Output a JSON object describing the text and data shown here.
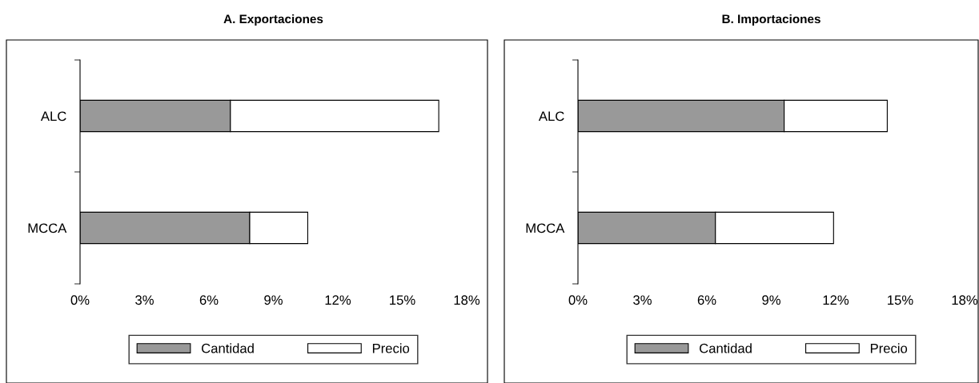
{
  "chart_data": [
    {
      "type": "bar",
      "title": "A. Exportaciones",
      "orientation": "horizontal",
      "stacked": true,
      "categories": [
        "ALC",
        "MCCA"
      ],
      "series": [
        {
          "name": "Cantidad",
          "color": "#999999",
          "values": [
            7.0,
            7.9
          ]
        },
        {
          "name": "Precio",
          "color": "#ffffff",
          "values": [
            9.7,
            2.7
          ]
        }
      ],
      "xlim": [
        0,
        18
      ],
      "xticks": [
        {
          "value": 0,
          "label": "0%"
        },
        {
          "value": 3,
          "label": "3%"
        },
        {
          "value": 6,
          "label": "6%"
        },
        {
          "value": 9,
          "label": "9%"
        },
        {
          "value": 12,
          "label": "12%"
        },
        {
          "value": 15,
          "label": "15%"
        },
        {
          "value": 18,
          "label": "18%"
        }
      ],
      "legend": "bottom",
      "grid": false
    },
    {
      "type": "bar",
      "title": "B. Importaciones",
      "orientation": "horizontal",
      "stacked": true,
      "categories": [
        "ALC",
        "MCCA"
      ],
      "series": [
        {
          "name": "Cantidad",
          "color": "#999999",
          "values": [
            9.6,
            6.4
          ]
        },
        {
          "name": "Precio",
          "color": "#ffffff",
          "values": [
            4.8,
            5.5
          ]
        }
      ],
      "xlim": [
        0,
        18
      ],
      "xticks": [
        {
          "value": 0,
          "label": "0%"
        },
        {
          "value": 3,
          "label": "3%"
        },
        {
          "value": 6,
          "label": "6%"
        },
        {
          "value": 9,
          "label": "9%"
        },
        {
          "value": 12,
          "label": "12%"
        },
        {
          "value": 15,
          "label": "15%"
        },
        {
          "value": 18,
          "label": "18%"
        }
      ],
      "legend": "bottom",
      "grid": false
    }
  ]
}
